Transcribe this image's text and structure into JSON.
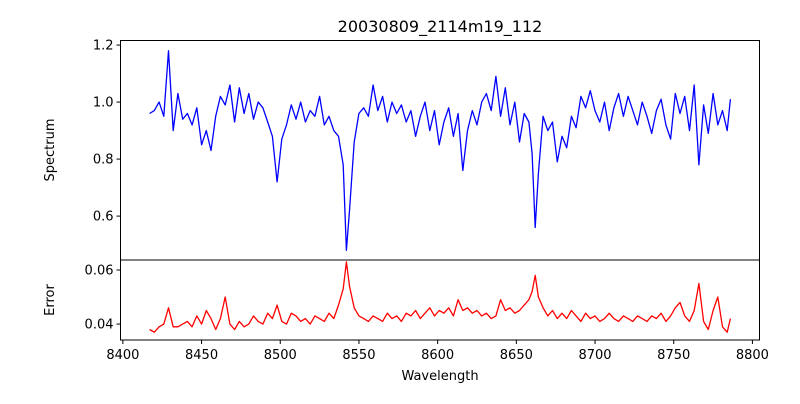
{
  "chart_data": [
    {
      "type": "line",
      "title": "20030809_2114m19_112",
      "xlabel": "",
      "ylabel": "Spectrum",
      "xlim": [
        8398.5,
        8804.5
      ],
      "ylim": [
        0.446,
        1.216
      ],
      "yticks": [
        "0.6",
        "0.8",
        "1.0",
        "1.2"
      ],
      "ytick_values": [
        0.6,
        0.8,
        1.0,
        1.2
      ],
      "grid": false,
      "series": [
        {
          "name": "Spectrum",
          "color": "#0000ff",
          "x": [
            8417,
            8420,
            8423,
            8426,
            8429,
            8432,
            8435,
            8438,
            8441,
            8444,
            8447,
            8450,
            8453,
            8456,
            8459,
            8462,
            8465,
            8468,
            8471,
            8474,
            8477,
            8480,
            8483,
            8486,
            8489,
            8492,
            8495,
            8498,
            8501,
            8504,
            8507,
            8510,
            8513,
            8516,
            8519,
            8522,
            8525,
            8528,
            8531,
            8534,
            8537,
            8540,
            8542,
            8544,
            8547,
            8550,
            8553,
            8556,
            8559,
            8562,
            8565,
            8568,
            8571,
            8574,
            8577,
            8580,
            8583,
            8586,
            8589,
            8592,
            8595,
            8598,
            8601,
            8604,
            8607,
            8610,
            8613,
            8616,
            8619,
            8622,
            8625,
            8628,
            8631,
            8634,
            8637,
            8640,
            8643,
            8646,
            8649,
            8652,
            8655,
            8658,
            8660,
            8662,
            8664,
            8667,
            8670,
            8673,
            8676,
            8679,
            8682,
            8685,
            8688,
            8691,
            8694,
            8697,
            8700,
            8703,
            8706,
            8709,
            8712,
            8715,
            8718,
            8721,
            8724,
            8727,
            8730,
            8733,
            8736,
            8739,
            8742,
            8745,
            8748,
            8751,
            8754,
            8757,
            8760,
            8763,
            8766,
            8769,
            8772,
            8775,
            8778,
            8781,
            8784,
            8786
          ],
          "y": [
            0.96,
            0.97,
            1.0,
            0.95,
            1.18,
            0.9,
            1.03,
            0.94,
            0.96,
            0.92,
            0.98,
            0.85,
            0.9,
            0.83,
            0.95,
            1.02,
            0.99,
            1.06,
            0.93,
            1.05,
            0.96,
            1.03,
            0.94,
            1.0,
            0.98,
            0.93,
            0.88,
            0.72,
            0.87,
            0.92,
            0.99,
            0.94,
            1.0,
            0.93,
            0.97,
            0.95,
            1.02,
            0.92,
            0.95,
            0.9,
            0.88,
            0.78,
            0.48,
            0.62,
            0.86,
            0.96,
            0.98,
            0.95,
            1.06,
            0.97,
            1.02,
            0.93,
            1.0,
            0.96,
            0.99,
            0.93,
            0.97,
            0.88,
            0.95,
            1.0,
            0.9,
            0.97,
            0.85,
            0.93,
            0.98,
            0.88,
            0.96,
            0.76,
            0.9,
            0.97,
            0.92,
            1.0,
            1.03,
            0.97,
            1.09,
            0.95,
            1.05,
            0.92,
            1.0,
            0.86,
            0.96,
            0.93,
            0.82,
            0.56,
            0.75,
            0.95,
            0.9,
            0.93,
            0.79,
            0.88,
            0.84,
            0.95,
            0.91,
            1.02,
            0.98,
            1.04,
            0.97,
            0.93,
            1.0,
            0.9,
            0.98,
            1.03,
            0.95,
            1.02,
            0.97,
            0.92,
            1.0,
            0.95,
            0.89,
            0.97,
            1.01,
            0.92,
            0.87,
            1.03,
            0.96,
            1.02,
            0.9,
            1.06,
            0.78,
            0.99,
            0.89,
            1.03,
            0.92,
            0.97,
            0.9,
            1.01
          ]
        }
      ]
    },
    {
      "type": "line",
      "title": "",
      "xlabel": "Wavelength",
      "ylabel": "Error",
      "xlim": [
        8398.5,
        8804.5
      ],
      "ylim": [
        0.0341,
        0.0637
      ],
      "xticks": [
        "8400",
        "8450",
        "8500",
        "8550",
        "8600",
        "8650",
        "8700",
        "8750",
        "8800"
      ],
      "xtick_values": [
        8400,
        8450,
        8500,
        8550,
        8600,
        8650,
        8700,
        8750,
        8800
      ],
      "yticks": [
        "0.04",
        "0.06"
      ],
      "ytick_values": [
        0.04,
        0.06
      ],
      "grid": false,
      "series": [
        {
          "name": "Error",
          "color": "#ff0000",
          "x": [
            8417,
            8420,
            8423,
            8426,
            8429,
            8432,
            8435,
            8438,
            8441,
            8444,
            8447,
            8450,
            8453,
            8456,
            8459,
            8462,
            8465,
            8468,
            8471,
            8474,
            8477,
            8480,
            8483,
            8486,
            8489,
            8492,
            8495,
            8498,
            8501,
            8504,
            8507,
            8510,
            8513,
            8516,
            8519,
            8522,
            8525,
            8528,
            8531,
            8534,
            8537,
            8540,
            8542,
            8544,
            8547,
            8550,
            8553,
            8556,
            8559,
            8562,
            8565,
            8568,
            8571,
            8574,
            8577,
            8580,
            8583,
            8586,
            8589,
            8592,
            8595,
            8598,
            8601,
            8604,
            8607,
            8610,
            8613,
            8616,
            8619,
            8622,
            8625,
            8628,
            8631,
            8634,
            8637,
            8640,
            8643,
            8646,
            8649,
            8652,
            8655,
            8658,
            8660,
            8662,
            8664,
            8667,
            8670,
            8673,
            8676,
            8679,
            8682,
            8685,
            8688,
            8691,
            8694,
            8697,
            8700,
            8703,
            8706,
            8709,
            8712,
            8715,
            8718,
            8721,
            8724,
            8727,
            8730,
            8733,
            8736,
            8739,
            8742,
            8745,
            8748,
            8751,
            8754,
            8757,
            8760,
            8763,
            8766,
            8769,
            8772,
            8775,
            8778,
            8781,
            8784,
            8786
          ],
          "y": [
            0.038,
            0.037,
            0.039,
            0.04,
            0.046,
            0.039,
            0.039,
            0.04,
            0.041,
            0.039,
            0.043,
            0.04,
            0.045,
            0.042,
            0.038,
            0.042,
            0.05,
            0.04,
            0.038,
            0.041,
            0.039,
            0.04,
            0.043,
            0.041,
            0.04,
            0.044,
            0.042,
            0.047,
            0.041,
            0.04,
            0.044,
            0.043,
            0.041,
            0.042,
            0.04,
            0.043,
            0.042,
            0.041,
            0.044,
            0.042,
            0.047,
            0.053,
            0.063,
            0.054,
            0.046,
            0.043,
            0.042,
            0.041,
            0.043,
            0.042,
            0.041,
            0.044,
            0.042,
            0.043,
            0.041,
            0.044,
            0.043,
            0.045,
            0.042,
            0.044,
            0.046,
            0.043,
            0.045,
            0.044,
            0.046,
            0.043,
            0.049,
            0.045,
            0.046,
            0.044,
            0.045,
            0.043,
            0.044,
            0.042,
            0.043,
            0.049,
            0.045,
            0.046,
            0.044,
            0.045,
            0.047,
            0.049,
            0.052,
            0.058,
            0.05,
            0.046,
            0.043,
            0.045,
            0.042,
            0.044,
            0.042,
            0.045,
            0.043,
            0.041,
            0.044,
            0.042,
            0.043,
            0.041,
            0.042,
            0.044,
            0.042,
            0.041,
            0.043,
            0.042,
            0.041,
            0.043,
            0.042,
            0.041,
            0.043,
            0.042,
            0.044,
            0.041,
            0.043,
            0.046,
            0.048,
            0.043,
            0.041,
            0.045,
            0.055,
            0.041,
            0.038,
            0.045,
            0.05,
            0.039,
            0.037,
            0.042
          ]
        }
      ]
    }
  ]
}
